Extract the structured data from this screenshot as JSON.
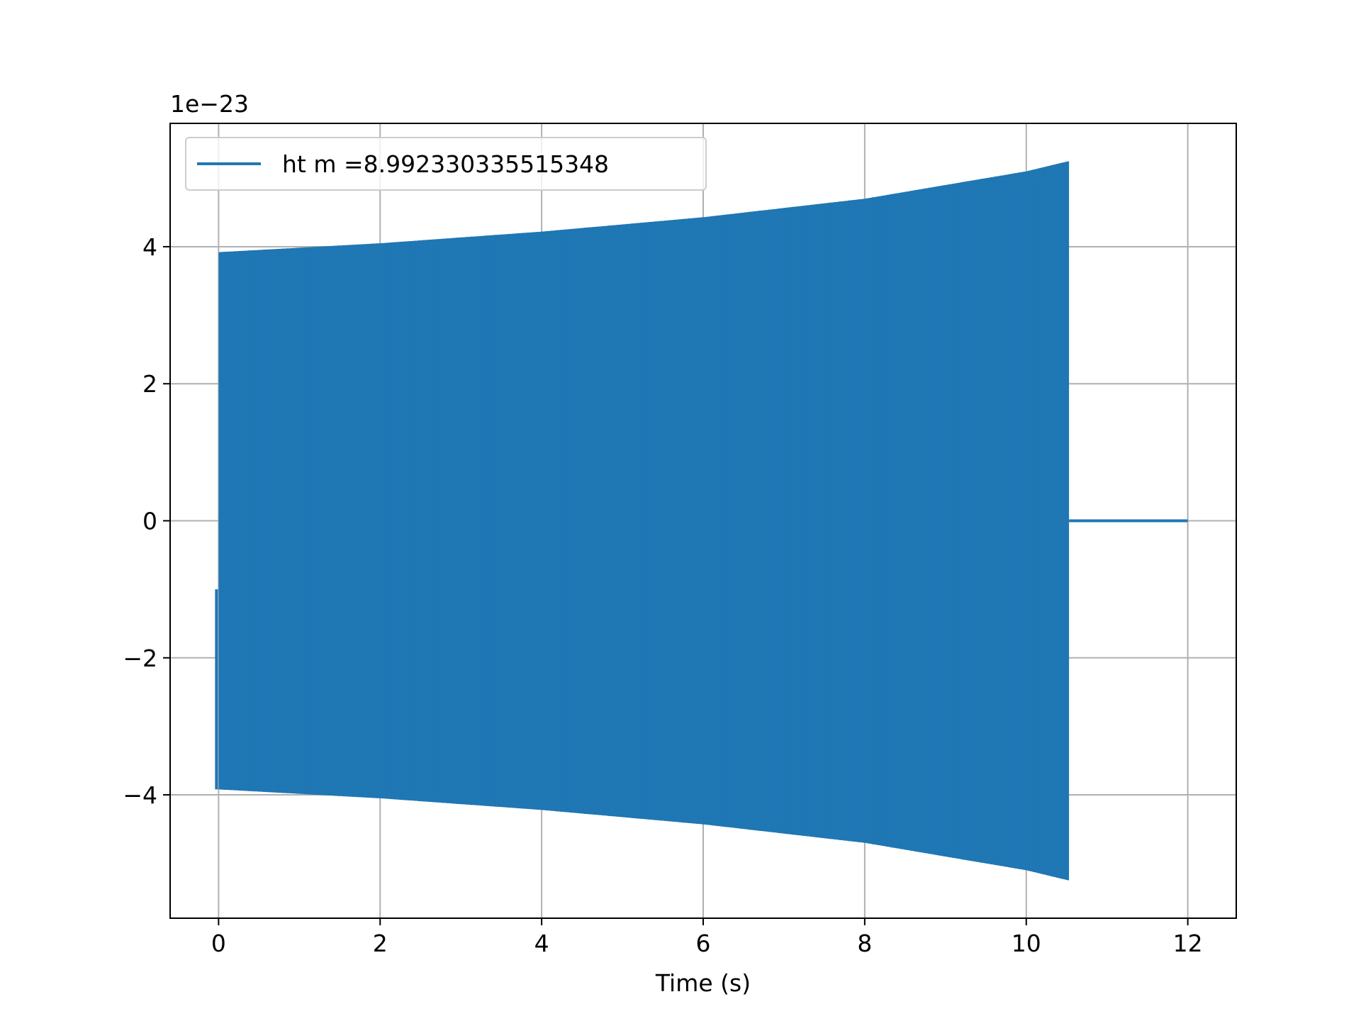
{
  "chart_data": {
    "type": "line",
    "offset_text": "1e−23",
    "xlabel": "Time (s)",
    "ylabel": "",
    "xlim": [
      -0.6,
      12.6
    ],
    "ylim": [
      -5.8,
      5.8
    ],
    "x_ticks": [
      0,
      2,
      4,
      6,
      8,
      10,
      12
    ],
    "x_tick_labels": [
      "0",
      "2",
      "4",
      "6",
      "8",
      "10",
      "12"
    ],
    "y_ticks": [
      -4,
      -2,
      0,
      2,
      4
    ],
    "y_tick_labels": [
      "−4",
      "−2",
      "0",
      "2",
      "4"
    ],
    "grid": true,
    "legend_position": "upper-left",
    "series": [
      {
        "name": "ht m =8.992330335515348",
        "color": "#1f77b4",
        "signal": {
          "kind": "chirp-oscillation",
          "x_start": 0,
          "x_end_signal": 10.53,
          "x_end": 12,
          "envelope_x": [
            0,
            2,
            4,
            6,
            8,
            10,
            10.53
          ],
          "envelope_y": [
            3.92,
            4.05,
            4.22,
            4.43,
            4.7,
            5.1,
            5.25
          ],
          "initial_value": -1.0,
          "final_flat_value": 0
        }
      }
    ]
  }
}
